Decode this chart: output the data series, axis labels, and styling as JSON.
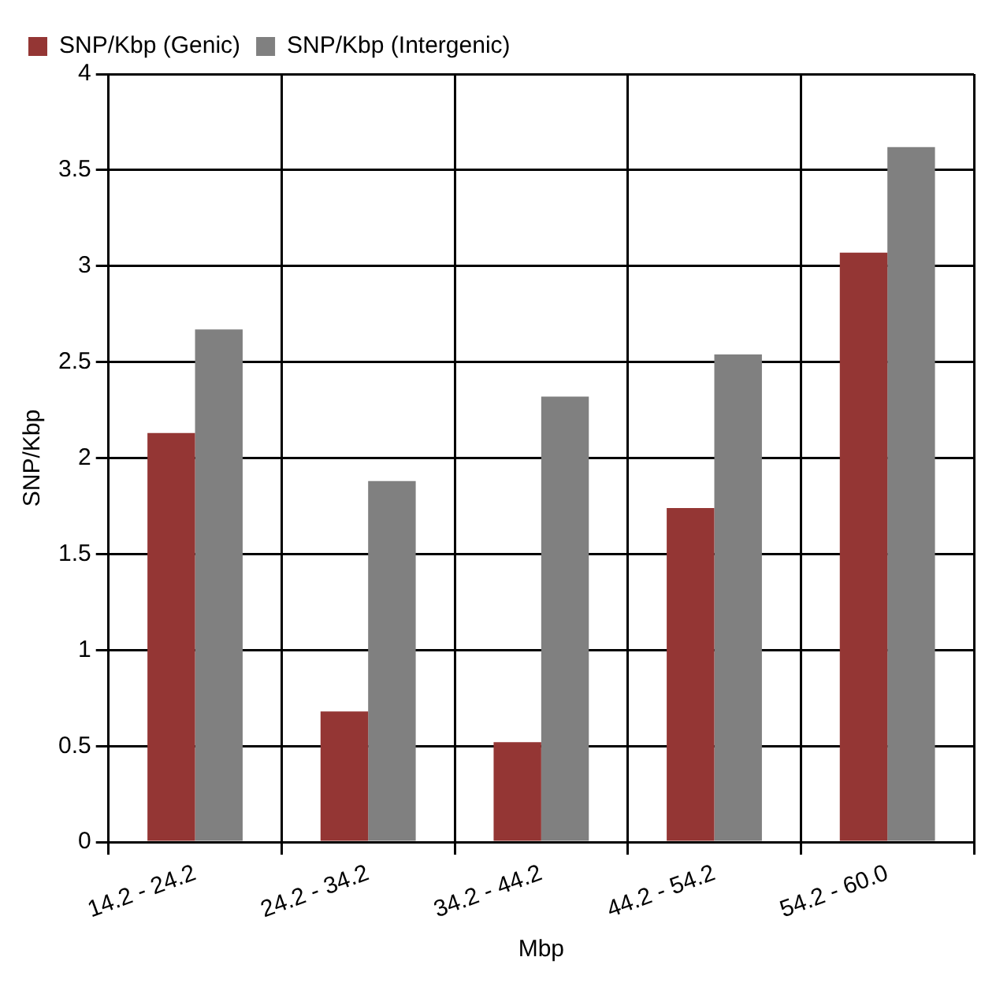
{
  "chart_data": {
    "type": "bar",
    "xlabel": "Mbp",
    "ylabel": "SNP/Kbp",
    "categories": [
      "14.2 - 24.2",
      "24.2 - 34.2",
      "34.2 - 44.2",
      "44.2 - 54.2",
      "54.2 - 60.0"
    ],
    "series": [
      {
        "name": "SNP/Kbp (Genic)",
        "color": "#943634",
        "values": [
          2.13,
          0.68,
          0.52,
          1.74,
          3.07
        ]
      },
      {
        "name": "SNP/Kbp (Intergenic)",
        "color": "#808080",
        "values": [
          2.67,
          1.88,
          2.32,
          2.54,
          3.62
        ]
      }
    ],
    "ylim": [
      0,
      4
    ],
    "yticks": [
      0,
      0.5,
      1,
      1.5,
      2,
      2.5,
      3,
      3.5,
      4
    ],
    "grid": true,
    "legend": "top left"
  }
}
